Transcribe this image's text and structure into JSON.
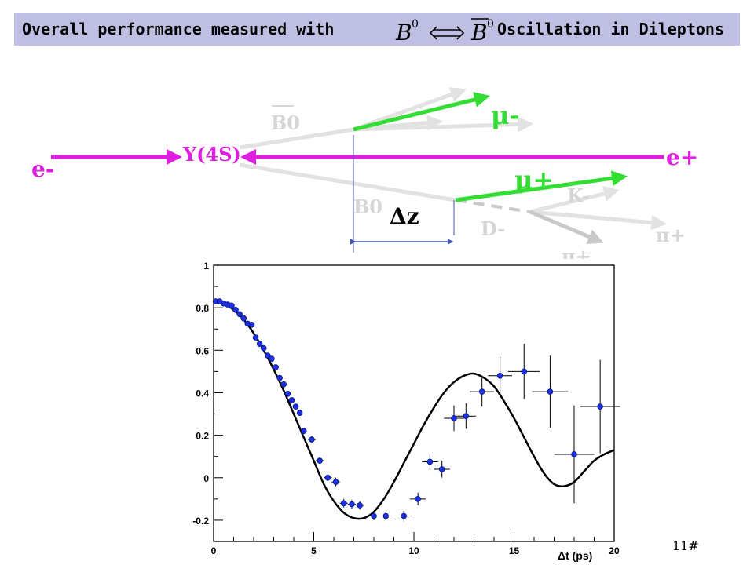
{
  "header": {
    "left_text": "Overall performance measured with",
    "right_text": "Oscillation in Dileptons",
    "formula": {
      "left": "B",
      "right": "B",
      "sup": "0"
    }
  },
  "diagram": {
    "labels": {
      "e_minus": "e-",
      "e_plus": "e+",
      "upsilon": "Y(4S)",
      "b0_bar": "B0",
      "b0": "B0",
      "mu_minus": "μ-",
      "mu_plus": "μ+",
      "k_minus": "K-",
      "d_minus": "D-",
      "pi_plus_1": "π+",
      "pi_plus_2": "π+",
      "delta_z": "Δz"
    },
    "colors": {
      "beam": "#e020e0",
      "muon": "#33dd33",
      "track": "#e2e2e2",
      "fragment": "#c9c9c9",
      "label": "#d6d6d6",
      "dz": "#4455bb"
    }
  },
  "chart_data": {
    "type": "scatter",
    "xlabel": "Δt (ps)",
    "ylabel": "",
    "xlim": [
      0,
      20
    ],
    "ylim": [
      -0.3,
      1.0
    ],
    "x_ticks": [
      0,
      5,
      10,
      15,
      20
    ],
    "y_ticks": [
      -0.2,
      0,
      0.2,
      0.4,
      0.6,
      0.8,
      1
    ],
    "x_tick_labels": [
      "0",
      "5",
      "10",
      "15",
      "20"
    ],
    "y_tick_labels": [
      "-0.2",
      "0",
      "0.2",
      "0.4",
      "0.6",
      "0.8",
      "1"
    ],
    "grid": false,
    "series": [
      {
        "kind": "data",
        "color": "#1f2fe0",
        "points": [
          {
            "x": 0.1,
            "y": 0.83,
            "xerr": 0.1,
            "yerr": 0.01
          },
          {
            "x": 0.3,
            "y": 0.83,
            "xerr": 0.1,
            "yerr": 0.01
          },
          {
            "x": 0.5,
            "y": 0.82,
            "xerr": 0.1,
            "yerr": 0.01
          },
          {
            "x": 0.7,
            "y": 0.815,
            "xerr": 0.1,
            "yerr": 0.01
          },
          {
            "x": 0.9,
            "y": 0.81,
            "xerr": 0.1,
            "yerr": 0.01
          },
          {
            "x": 1.1,
            "y": 0.79,
            "xerr": 0.1,
            "yerr": 0.01
          },
          {
            "x": 1.3,
            "y": 0.77,
            "xerr": 0.1,
            "yerr": 0.01
          },
          {
            "x": 1.5,
            "y": 0.75,
            "xerr": 0.1,
            "yerr": 0.01
          },
          {
            "x": 1.7,
            "y": 0.725,
            "xerr": 0.1,
            "yerr": 0.01
          },
          {
            "x": 1.9,
            "y": 0.72,
            "xerr": 0.1,
            "yerr": 0.01
          },
          {
            "x": 2.1,
            "y": 0.66,
            "xerr": 0.1,
            "yerr": 0.01
          },
          {
            "x": 2.3,
            "y": 0.63,
            "xerr": 0.1,
            "yerr": 0.01
          },
          {
            "x": 2.5,
            "y": 0.61,
            "xerr": 0.1,
            "yerr": 0.01
          },
          {
            "x": 2.7,
            "y": 0.575,
            "xerr": 0.1,
            "yerr": 0.01
          },
          {
            "x": 2.9,
            "y": 0.56,
            "xerr": 0.1,
            "yerr": 0.01
          },
          {
            "x": 3.1,
            "y": 0.52,
            "xerr": 0.1,
            "yerr": 0.01
          },
          {
            "x": 3.3,
            "y": 0.47,
            "xerr": 0.1,
            "yerr": 0.01
          },
          {
            "x": 3.5,
            "y": 0.44,
            "xerr": 0.1,
            "yerr": 0.01
          },
          {
            "x": 3.7,
            "y": 0.395,
            "xerr": 0.1,
            "yerr": 0.01
          },
          {
            "x": 3.9,
            "y": 0.365,
            "xerr": 0.1,
            "yerr": 0.01
          },
          {
            "x": 4.1,
            "y": 0.335,
            "xerr": 0.1,
            "yerr": 0.01
          },
          {
            "x": 4.3,
            "y": 0.305,
            "xerr": 0.1,
            "yerr": 0.01
          },
          {
            "x": 4.5,
            "y": 0.22,
            "xerr": 0.1,
            "yerr": 0.01
          },
          {
            "x": 4.9,
            "y": 0.18,
            "xerr": 0.2,
            "yerr": 0.015
          },
          {
            "x": 5.3,
            "y": 0.08,
            "xerr": 0.2,
            "yerr": 0.015
          },
          {
            "x": 5.7,
            "y": 0.0,
            "xerr": 0.2,
            "yerr": 0.015
          },
          {
            "x": 6.1,
            "y": -0.02,
            "xerr": 0.2,
            "yerr": 0.02
          },
          {
            "x": 6.5,
            "y": -0.12,
            "xerr": 0.2,
            "yerr": 0.02
          },
          {
            "x": 6.9,
            "y": -0.125,
            "xerr": 0.2,
            "yerr": 0.02
          },
          {
            "x": 7.3,
            "y": -0.13,
            "xerr": 0.2,
            "yerr": 0.02
          },
          {
            "x": 8.0,
            "y": -0.18,
            "xerr": 0.4,
            "yerr": 0.02
          },
          {
            "x": 8.6,
            "y": -0.18,
            "xerr": 0.3,
            "yerr": 0.02
          },
          {
            "x": 9.5,
            "y": -0.18,
            "xerr": 0.4,
            "yerr": 0.025
          },
          {
            "x": 10.2,
            "y": -0.1,
            "xerr": 0.4,
            "yerr": 0.03
          },
          {
            "x": 10.8,
            "y": 0.075,
            "xerr": 0.4,
            "yerr": 0.04
          },
          {
            "x": 11.4,
            "y": 0.04,
            "xerr": 0.4,
            "yerr": 0.04
          },
          {
            "x": 12.0,
            "y": 0.28,
            "xerr": 0.5,
            "yerr": 0.06
          },
          {
            "x": 12.6,
            "y": 0.29,
            "xerr": 0.5,
            "yerr": 0.06
          },
          {
            "x": 13.4,
            "y": 0.405,
            "xerr": 0.6,
            "yerr": 0.07
          },
          {
            "x": 14.3,
            "y": 0.48,
            "xerr": 0.6,
            "yerr": 0.09
          },
          {
            "x": 15.5,
            "y": 0.5,
            "xerr": 0.8,
            "yerr": 0.13
          },
          {
            "x": 16.8,
            "y": 0.405,
            "xerr": 0.9,
            "yerr": 0.17
          },
          {
            "x": 18.0,
            "y": 0.11,
            "xerr": 1.0,
            "yerr": 0.23
          },
          {
            "x": 19.3,
            "y": 0.335,
            "xerr": 1.0,
            "yerr": 0.22
          }
        ]
      },
      {
        "kind": "fit",
        "color": "#000000",
        "x": [
          0,
          0.5,
          1,
          1.5,
          2,
          2.5,
          3,
          3.5,
          4,
          4.5,
          5,
          5.5,
          6,
          6.5,
          7,
          7.5,
          8,
          8.5,
          9,
          9.5,
          10,
          10.5,
          11,
          11.5,
          12,
          12.5,
          13,
          13.5,
          14,
          14.5,
          15,
          15.5,
          16,
          16.5,
          17,
          17.5,
          18,
          18.5,
          19,
          19.5,
          20
        ],
        "y": [
          0.83,
          0.82,
          0.79,
          0.745,
          0.68,
          0.6,
          0.51,
          0.41,
          0.3,
          0.19,
          0.08,
          -0.03,
          -0.11,
          -0.165,
          -0.19,
          -0.19,
          -0.16,
          -0.1,
          -0.02,
          0.07,
          0.16,
          0.25,
          0.33,
          0.4,
          0.45,
          0.48,
          0.49,
          0.47,
          0.43,
          0.36,
          0.28,
          0.19,
          0.1,
          0.02,
          -0.03,
          -0.04,
          -0.02,
          0.03,
          0.08,
          0.11,
          0.13
        ]
      }
    ]
  },
  "footer": {
    "page_number": "11#"
  }
}
